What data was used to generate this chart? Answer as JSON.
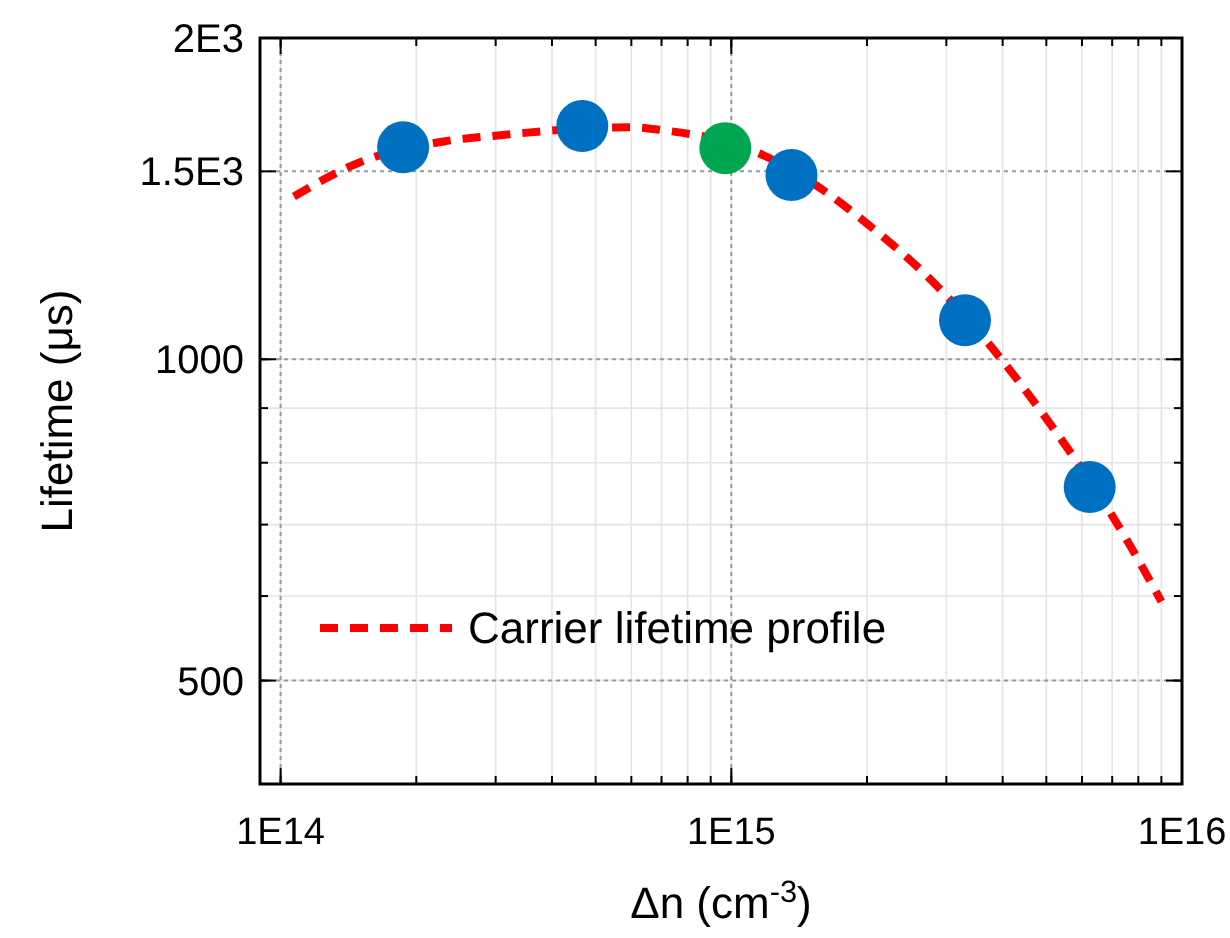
{
  "chart_data": {
    "type": "scatter",
    "xlabel": "Δn (cm$^{-3}$)",
    "ylabel": "Lifetime (μs)",
    "log": "xy",
    "grid": true,
    "legend": "bottom left",
    "marker": "circle",
    "xlim": [
      90000000000000.0,
      1e+16
    ],
    "ylim": [
      400,
      2000
    ],
    "xticks": [
      {
        "value": 100000000000000.0,
        "label": "1E14"
      },
      {
        "value": 1000000000000000.0,
        "label": "1E15"
      },
      {
        "value": 1e+16,
        "label": "1E16"
      }
    ],
    "yticks": [
      500,
      1000,
      {
        "value": 1500,
        "label": "1.5E3"
      },
      {
        "value": 2000,
        "label": "2E3"
      }
    ],
    "series": [
      {
        "name": "Carrier lifetime profile",
        "type": "line",
        "line_style": "dashed",
        "marker": "none",
        "color": "#ff0000",
        "x": [
          107000000000000.0,
          150000000000000.0,
          230000000000000.0,
          300000000000000.0,
          600000000000000.0,
          700000000000000.0,
          1150000000000000.0,
          1600000000000000.0,
          2000000000000000.0,
          2700000000000000.0,
          5000000000000000.0,
          7500000000000000.0,
          9000000000000000.0
        ],
        "values": [
          1421,
          1530,
          1600,
          1620,
          1650,
          1640,
          1560,
          1440,
          1340,
          1200,
          880,
          680,
          593
        ]
      },
      {
        "color": "#0070c0",
        "x": [
          187000000000000.0,
          467000000000000.0,
          1360000000000000.0,
          3300000000000000.0,
          6240000000000000.0
        ],
        "values": [
          1580,
          1654,
          1488,
          1088,
          759
        ]
      },
      {
        "color": "#00a651",
        "x": [
          970000000000000.0
        ],
        "values": [
          1577
        ]
      }
    ]
  }
}
